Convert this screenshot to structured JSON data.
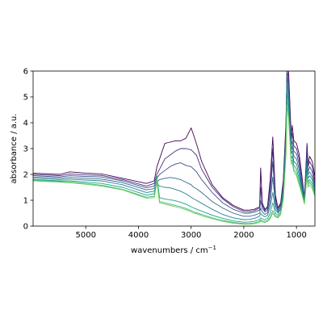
{
  "chart_data": {
    "type": "line",
    "title": "",
    "xlabel": "wavenumbers / cm",
    "xlabel_superscript": "−1",
    "ylabel": "absorbance / a.u.",
    "xlim": [
      6000,
      650
    ],
    "ylim": [
      0,
      6
    ],
    "x_inverted": true,
    "grid": false,
    "legend": "none",
    "xticks": [
      5000,
      4000,
      3000,
      2000,
      1000
    ],
    "xtick_labels": [
      "5000",
      "4000",
      "3000",
      "2000",
      "1000"
    ],
    "yticks": [
      0,
      1,
      2,
      3,
      4,
      5,
      6
    ],
    "ytick_labels": [
      "0",
      "1",
      "2",
      "3",
      "4",
      "5",
      "6"
    ],
    "colors": [
      "#440154",
      "#472c7a",
      "#3e4c8a",
      "#31688e",
      "#26828e",
      "#1f9e89",
      "#35b779",
      "#6ece58"
    ],
    "x": [
      6000,
      5500,
      5300,
      5000,
      4700,
      4300,
      3850,
      3700,
      3650,
      3600,
      3500,
      3400,
      3300,
      3200,
      3100,
      3000,
      2950,
      2900,
      2800,
      2600,
      2400,
      2200,
      2000,
      1900,
      1800,
      1700,
      1680,
      1650,
      1600,
      1550,
      1500,
      1450,
      1400,
      1350,
      1300,
      1250,
      1200,
      1180,
      1150,
      1120,
      1100,
      1080,
      1050,
      1000,
      950,
      900,
      850,
      800,
      780,
      750,
      700,
      650
    ],
    "series": [
      {
        "values": [
          2.05,
          2.0,
          2.1,
          2.05,
          2.02,
          1.85,
          1.65,
          1.75,
          2.3,
          2.6,
          3.2,
          3.25,
          3.3,
          3.3,
          3.4,
          3.8,
          3.5,
          3.2,
          2.5,
          1.6,
          1.1,
          0.8,
          0.62,
          0.62,
          0.65,
          0.75,
          2.25,
          0.9,
          0.65,
          0.75,
          1.8,
          3.45,
          1.2,
          0.7,
          0.9,
          1.8,
          4.0,
          6.0,
          6.0,
          4.5,
          3.5,
          3.9,
          3.3,
          3.2,
          2.8,
          2.0,
          1.1,
          3.2,
          2.4,
          2.7,
          2.5,
          1.9
        ]
      },
      {
        "values": [
          2.0,
          1.95,
          2.02,
          1.98,
          1.96,
          1.8,
          1.55,
          1.65,
          2.0,
          2.2,
          2.6,
          2.75,
          2.9,
          3.0,
          3.0,
          2.95,
          2.85,
          2.75,
          2.2,
          1.5,
          1.05,
          0.75,
          0.57,
          0.56,
          0.6,
          0.7,
          1.5,
          0.8,
          0.6,
          0.7,
          1.5,
          3.0,
          1.1,
          0.68,
          0.85,
          1.7,
          3.8,
          6.0,
          5.8,
          4.3,
          3.3,
          3.6,
          3.1,
          3.0,
          2.6,
          1.9,
          1.05,
          3.0,
          2.3,
          2.5,
          2.3,
          1.7
        ]
      },
      {
        "values": [
          1.95,
          1.9,
          1.95,
          1.92,
          1.9,
          1.75,
          1.48,
          1.55,
          1.85,
          2.0,
          2.15,
          2.3,
          2.4,
          2.45,
          2.35,
          2.3,
          2.2,
          2.1,
          1.8,
          1.3,
          0.9,
          0.65,
          0.5,
          0.5,
          0.54,
          0.62,
          1.0,
          0.7,
          0.55,
          0.62,
          1.2,
          2.5,
          0.95,
          0.62,
          0.8,
          1.55,
          3.6,
          6.0,
          5.5,
          4.0,
          3.1,
          3.3,
          2.9,
          2.8,
          2.4,
          1.7,
          1.0,
          2.8,
          2.1,
          2.3,
          2.1,
          1.6
        ]
      },
      {
        "values": [
          1.9,
          1.85,
          1.88,
          1.85,
          1.82,
          1.68,
          1.4,
          1.45,
          1.7,
          1.8,
          1.85,
          1.88,
          1.85,
          1.8,
          1.7,
          1.6,
          1.5,
          1.45,
          1.3,
          0.95,
          0.7,
          0.5,
          0.38,
          0.38,
          0.42,
          0.5,
          0.7,
          0.55,
          0.45,
          0.52,
          0.95,
          1.9,
          0.8,
          0.55,
          0.72,
          1.4,
          3.4,
          5.8,
          5.2,
          3.8,
          2.9,
          3.1,
          2.7,
          2.6,
          2.2,
          1.6,
          0.95,
          2.6,
          2.0,
          2.1,
          1.9,
          1.5
        ]
      },
      {
        "values": [
          1.85,
          1.8,
          1.82,
          1.78,
          1.75,
          1.6,
          1.3,
          1.35,
          1.65,
          1.55,
          1.5,
          1.48,
          1.42,
          1.35,
          1.25,
          1.12,
          1.05,
          1.0,
          0.88,
          0.65,
          0.45,
          0.32,
          0.25,
          0.26,
          0.3,
          0.38,
          0.5,
          0.42,
          0.36,
          0.42,
          0.75,
          1.3,
          0.65,
          0.5,
          0.65,
          1.3,
          3.2,
          5.5,
          4.9,
          3.6,
          2.8,
          2.9,
          2.5,
          2.4,
          2.0,
          1.5,
          0.92,
          2.4,
          1.85,
          1.95,
          1.8,
          1.4
        ]
      },
      {
        "values": [
          1.8,
          1.75,
          1.75,
          1.7,
          1.65,
          1.5,
          1.2,
          1.25,
          1.9,
          1.1,
          1.05,
          1.02,
          0.98,
          0.92,
          0.85,
          0.75,
          0.7,
          0.66,
          0.58,
          0.42,
          0.3,
          0.2,
          0.15,
          0.16,
          0.18,
          0.25,
          0.32,
          0.28,
          0.25,
          0.3,
          0.5,
          0.9,
          0.5,
          0.42,
          0.55,
          1.2,
          3.0,
          5.2,
          4.6,
          3.4,
          2.6,
          2.7,
          2.35,
          2.2,
          1.85,
          1.4,
          0.9,
          2.2,
          1.7,
          1.8,
          1.65,
          1.3
        ]
      },
      {
        "values": [
          1.78,
          1.72,
          1.7,
          1.65,
          1.58,
          1.42,
          1.12,
          1.15,
          1.95,
          0.95,
          0.9,
          0.85,
          0.8,
          0.75,
          0.68,
          0.6,
          0.55,
          0.52,
          0.45,
          0.32,
          0.22,
          0.14,
          0.1,
          0.1,
          0.12,
          0.18,
          0.24,
          0.2,
          0.18,
          0.22,
          0.35,
          0.6,
          0.4,
          0.35,
          0.48,
          1.1,
          2.8,
          4.9,
          4.3,
          3.2,
          2.5,
          2.55,
          2.2,
          2.05,
          1.7,
          1.3,
          0.88,
          2.0,
          1.6,
          1.7,
          1.55,
          1.2
        ]
      },
      {
        "values": [
          1.75,
          1.7,
          1.68,
          1.62,
          1.55,
          1.4,
          1.08,
          1.1,
          1.7,
          0.9,
          0.85,
          0.8,
          0.75,
          0.7,
          0.63,
          0.55,
          0.5,
          0.48,
          0.4,
          0.28,
          0.18,
          0.11,
          0.07,
          0.07,
          0.09,
          0.14,
          0.2,
          0.16,
          0.14,
          0.18,
          0.28,
          0.5,
          0.35,
          0.32,
          0.45,
          1.05,
          2.7,
          4.7,
          4.1,
          3.1,
          2.4,
          2.45,
          2.1,
          1.95,
          1.6,
          1.25,
          0.85,
          1.9,
          1.5,
          1.6,
          1.45,
          1.15
        ]
      }
    ]
  }
}
